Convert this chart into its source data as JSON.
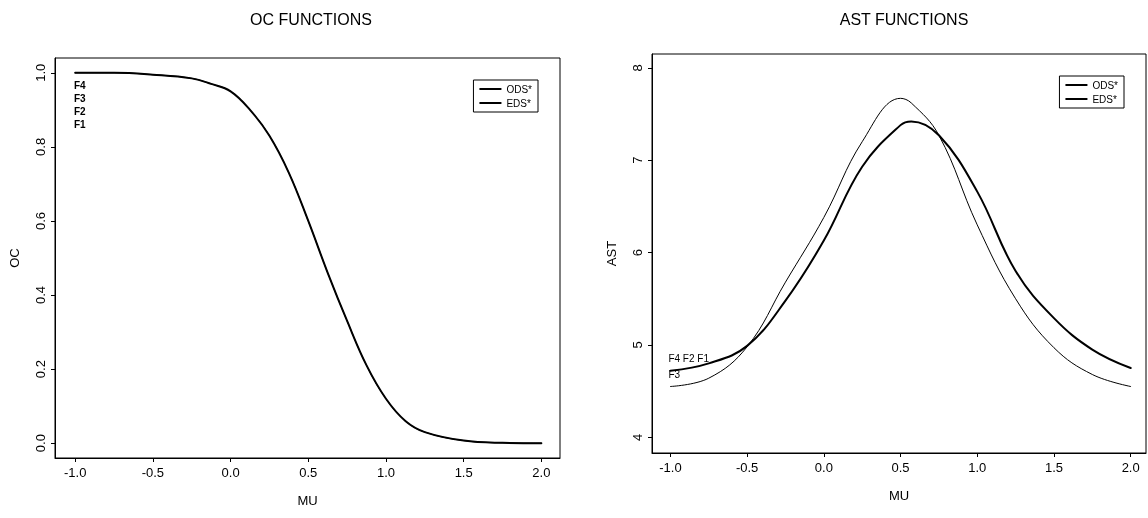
{
  "chart_data": [
    {
      "type": "line",
      "title": "OC FUNCTIONS",
      "xlabel": "MU",
      "ylabel": "OC",
      "x": [
        -1.0,
        -0.75,
        -0.5,
        -0.25,
        -0.125,
        0.0,
        0.125,
        0.25,
        0.375,
        0.5,
        0.625,
        0.75,
        0.875,
        1.0,
        1.125,
        1.25,
        1.5,
        1.75,
        2.0
      ],
      "series": [
        {
          "name": "ODS*",
          "color": "#000000",
          "values": [
            1.0,
            1.0,
            0.995,
            0.985,
            0.97,
            0.95,
            0.9,
            0.83,
            0.73,
            0.6,
            0.46,
            0.33,
            0.21,
            0.12,
            0.06,
            0.03,
            0.007,
            0.001,
            0.0
          ]
        },
        {
          "name": "EDS*",
          "color": "#000000",
          "values": [
            1.0,
            1.0,
            0.995,
            0.985,
            0.97,
            0.95,
            0.9,
            0.83,
            0.73,
            0.6,
            0.46,
            0.33,
            0.21,
            0.12,
            0.06,
            0.03,
            0.007,
            0.001,
            0.0
          ]
        }
      ],
      "xlim": [
        -1.13,
        2.12
      ],
      "ylim": [
        -0.04,
        1.04
      ],
      "xticks": [
        {
          "value": -1,
          "label": "-1.0"
        },
        -0.5,
        {
          "value": 0,
          "label": "0.0"
        },
        0.5,
        {
          "value": 1,
          "label": "1.0"
        },
        1.5,
        {
          "value": 2,
          "label": "2.0"
        }
      ],
      "yticks": [
        {
          "value": 0,
          "label": "0.0"
        },
        0.2,
        0.4,
        0.6,
        0.8,
        {
          "value": 1,
          "label": "1.0"
        }
      ],
      "legend": "top right",
      "grid": false,
      "annotations": [
        "F4",
        "F3",
        "F2",
        "F1"
      ]
    },
    {
      "type": "line",
      "title": "AST FUNCTIONS",
      "xlabel": "MU",
      "ylabel": "AST",
      "x": [
        -1.0,
        -0.75,
        -0.5,
        -0.25,
        0.0,
        0.25,
        0.5,
        0.57,
        0.75,
        1.0,
        1.25,
        1.5,
        1.75,
        2.0
      ],
      "series": [
        {
          "name": "ODS*",
          "color": "#000000",
          "values": [
            4.72,
            4.8,
            4.99,
            5.48,
            6.13,
            6.93,
            7.38,
            7.42,
            7.27,
            6.66,
            5.8,
            5.29,
            4.95,
            4.75
          ]
        },
        {
          "name": "EDS*",
          "color": "#000000",
          "values": [
            4.55,
            4.64,
            4.98,
            5.68,
            6.38,
            7.2,
            7.67,
            7.62,
            7.27,
            6.3,
            5.5,
            4.97,
            4.68,
            4.55
          ]
        }
      ],
      "xlim": [
        -1.12,
        2.1
      ],
      "ylim": [
        3.83,
        8.15
      ],
      "xticks": [
        {
          "value": -1,
          "label": "-1.0"
        },
        -0.5,
        {
          "value": 0,
          "label": "0.0"
        },
        0.5,
        {
          "value": 1,
          "label": "1.0"
        },
        1.5,
        {
          "value": 2,
          "label": "2.0"
        }
      ],
      "yticks": [
        4,
        5,
        6,
        7,
        8
      ],
      "legend": "top right",
      "grid": false,
      "annotations": [
        {
          "text": "F4 F2 F1",
          "x": -1.0,
          "y": 4.72
        },
        {
          "text": "F3",
          "x": -1.0,
          "y": 4.55
        }
      ]
    }
  ]
}
